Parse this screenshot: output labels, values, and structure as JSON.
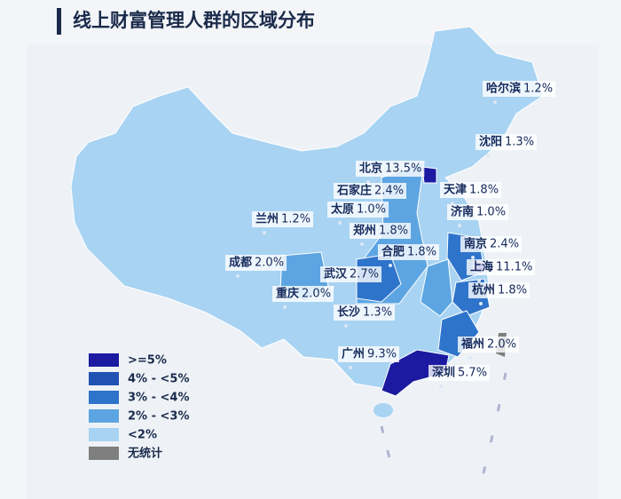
{
  "title": "线上财富管理人群的区域分布",
  "cities": [
    {
      "name": "哈尔滨",
      "share": "1.2%"
    },
    {
      "name": "沈阳",
      "share": "1.3%"
    },
    {
      "name": "北京",
      "share": "13.5%"
    },
    {
      "name": "石家庄",
      "share": "2.4%"
    },
    {
      "name": "天津",
      "share": "1.8%"
    },
    {
      "name": "太原",
      "share": "1.0%"
    },
    {
      "name": "济南",
      "share": "1.0%"
    },
    {
      "name": "兰州",
      "share": "1.2%"
    },
    {
      "name": "郑州",
      "share": "1.8%"
    },
    {
      "name": "合肥",
      "share": "1.8%"
    },
    {
      "name": "南京",
      "share": "2.4%"
    },
    {
      "name": "成都",
      "share": "2.0%"
    },
    {
      "name": "武汉",
      "share": "2.7%"
    },
    {
      "name": "上海",
      "share": "11.1%"
    },
    {
      "name": "重庆",
      "share": "2.0%"
    },
    {
      "name": "杭州",
      "share": "1.8%"
    },
    {
      "name": "长沙",
      "share": "1.3%"
    },
    {
      "name": "福州",
      "share": "2.0%"
    },
    {
      "name": "广州",
      "share": "9.3%"
    },
    {
      "name": "深圳",
      "share": "5.7%"
    }
  ],
  "legend": [
    {
      "label": ">=5%",
      "color": "#1b1aa0"
    },
    {
      "label": "4%  - <5%",
      "color": "#1f52b3"
    },
    {
      "label": "3%  - <4%",
      "color": "#2f74cb"
    },
    {
      "label": "2%  - <3%",
      "color": "#5da5e2"
    },
    {
      "label": "<2%",
      "color": "#a8d3f2"
    },
    {
      "label": "无统计",
      "color": "#7f7f7f"
    }
  ]
}
